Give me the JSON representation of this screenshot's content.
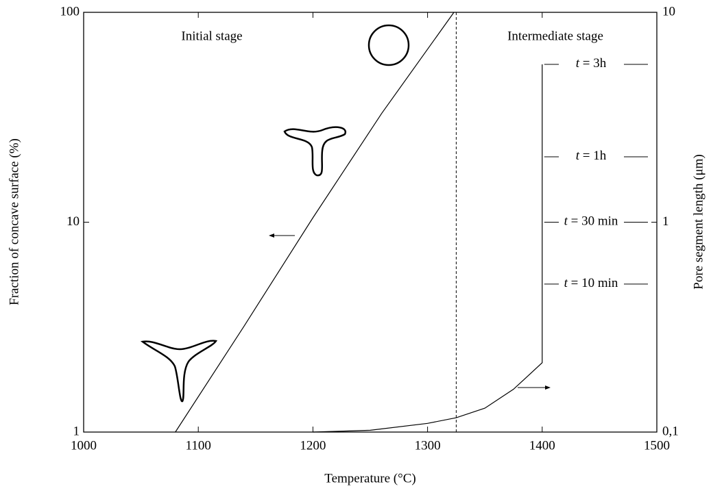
{
  "chart_data": {
    "type": "line",
    "x_label": "Temperature (°C)",
    "y_label": "Fraction of concave surface (%)",
    "y2_label": "Pore segment length (μm)",
    "xlim": [
      1000,
      1500
    ],
    "xticks": [
      1000,
      1100,
      1200,
      1300,
      1400,
      1500
    ],
    "ylim": [
      1,
      100
    ],
    "yticks": [
      1,
      10,
      100
    ],
    "yscale": "log",
    "y2lim": [
      0.1,
      10
    ],
    "y2ticks": [
      {
        "value": 0.1,
        "label": "0,1"
      },
      1,
      10
    ],
    "y2scale": "log",
    "color": "#000000",
    "vline_x": 1325,
    "series": [
      {
        "x": [
          1080,
          1140,
          1200,
          1260,
          1323
        ],
        "values": [
          1,
          3.2,
          10.5,
          33,
          100
        ]
      },
      {
        "axis": "y2",
        "x": [
          1200,
          1250,
          1300,
          1325,
          1350,
          1375,
          1400,
          1400
        ],
        "values": [
          0.1,
          0.102,
          0.11,
          0.117,
          0.13,
          0.16,
          0.214,
          5.65
        ]
      }
    ],
    "annotations": [
      "Initial stage",
      "Intermediate stage"
    ],
    "time_marks": [
      {
        "label": "t = 3h",
        "value": 5.65
      },
      {
        "label": "t = 1h",
        "value": 2.05
      },
      {
        "label": "t = 30 min",
        "value": 1.0
      },
      {
        "label": "t = 10 min",
        "value": 0.507
      }
    ]
  }
}
